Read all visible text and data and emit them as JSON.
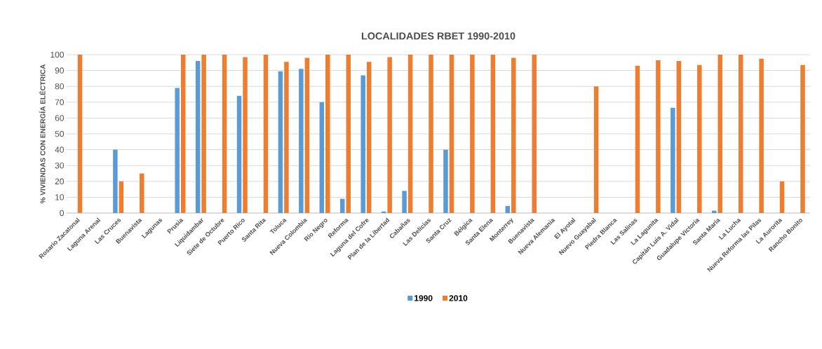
{
  "chart_data": {
    "type": "bar",
    "title": "LOCALIDADES RBET 1990-2010",
    "ylabel": "% VIVIENDAS CON ENERGÍA ELÉCTRICA",
    "categories": [
      "Rosario Zacatonal",
      "Laguna Arenal",
      "Las Cruces",
      "Buenavista",
      "Lagunas",
      "Prusia",
      "Liquidambar",
      "Siete de Octubre",
      "Puerto Rico",
      "Santa Rita",
      "Toluca",
      "Nueva Colombia",
      "Río Negro",
      "Reforma",
      "Laguna del Cofre",
      "Plan de la Libertad",
      "Cabañas",
      "Las Delicias",
      "Santa Cruz",
      "Bélgica",
      "Santa Elena",
      "Monterrey",
      "Buenavista",
      "Nueva Alemania",
      "El Ayotal",
      "Nuevo Guayabal",
      "Piedra Blanca",
      "Las Salinas",
      "La Lagunita",
      "Capitán Luis A. Vidal",
      "Guadalupe Victoria",
      "Santa María",
      "La Lucha",
      "Nueva Reforma las Pilas",
      "La Aurorita",
      "Rancho Bonito"
    ],
    "series": [
      {
        "name": "1990",
        "color": "#5b9bd5",
        "values": [
          0,
          0,
          40,
          0,
          0,
          79,
          96,
          0,
          74,
          0,
          89.5,
          91,
          70,
          9,
          87,
          1,
          14,
          0,
          40,
          0,
          0,
          4.5,
          0,
          0,
          0,
          0,
          0,
          0,
          0,
          66.5,
          0,
          1.5,
          0,
          0,
          0,
          0
        ]
      },
      {
        "name": "2010",
        "color": "#ed7d31",
        "values": [
          100,
          0,
          20,
          25,
          0,
          100,
          100,
          100,
          98.5,
          100,
          95.5,
          98,
          100,
          100,
          95.5,
          98.5,
          100,
          100,
          100,
          100,
          100,
          98,
          100,
          0,
          0,
          80,
          0,
          93,
          96.5,
          96,
          93.5,
          100,
          100,
          97.5,
          20,
          93.5
        ]
      }
    ],
    "ylim": [
      0,
      100
    ],
    "yticks": [
      0,
      10,
      20,
      30,
      40,
      50,
      60,
      70,
      80,
      90,
      100
    ],
    "grid": "y",
    "legend": "bottom"
  }
}
